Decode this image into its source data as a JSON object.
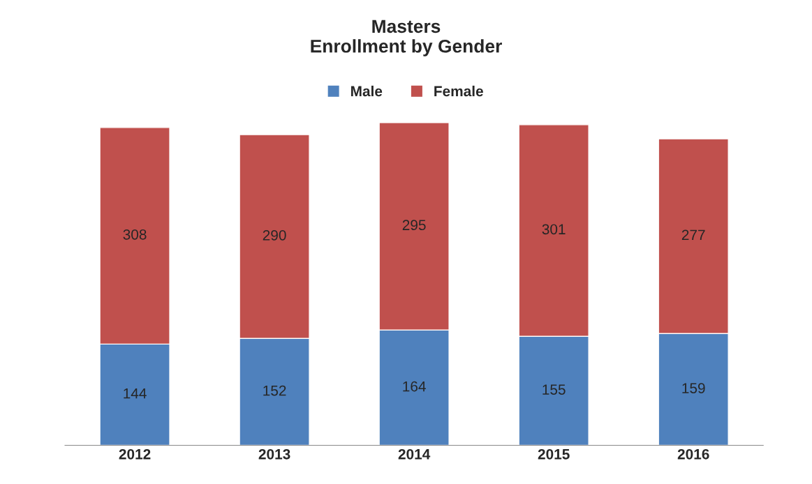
{
  "chart_data": {
    "type": "bar",
    "title": "Masters\nEnrollment by Gender",
    "categories": [
      "2012",
      "2013",
      "2014",
      "2015",
      "2016"
    ],
    "stacked": true,
    "data_labels": true,
    "legend": "top",
    "grid": false,
    "tick_labels": "x",
    "series": [
      {
        "name": "Male",
        "color": "#4f81bd",
        "values": [
          144,
          152,
          164,
          155,
          159
        ]
      },
      {
        "name": "Female",
        "color": "#c0504d",
        "values": [
          308,
          290,
          295,
          301,
          277
        ]
      }
    ]
  }
}
